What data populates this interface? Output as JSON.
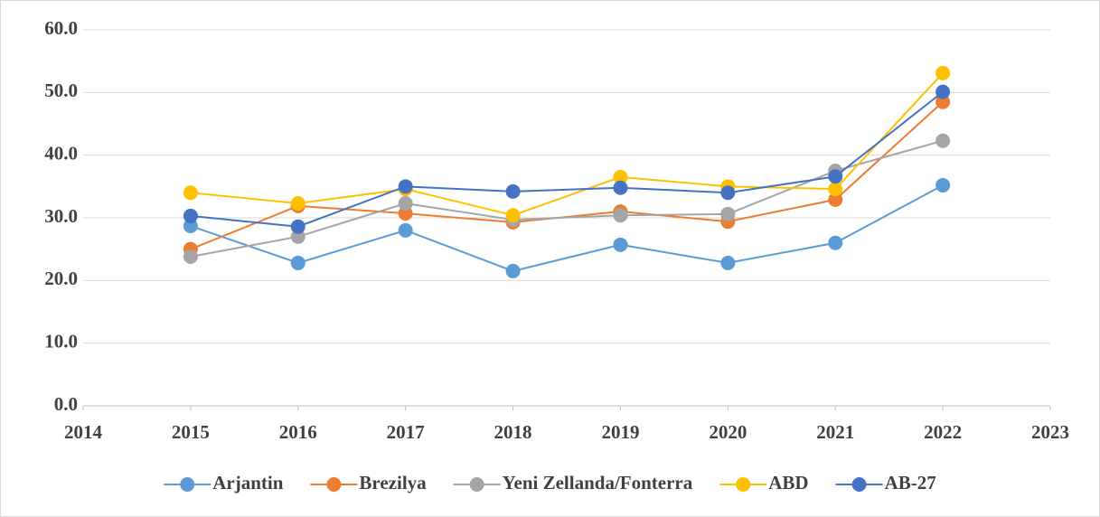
{
  "chart_data": {
    "type": "line",
    "x": [
      2015,
      2016,
      2017,
      2018,
      2019,
      2020,
      2021,
      2022
    ],
    "series": [
      {
        "name": "Arjantin",
        "color": "#5B9BD5",
        "values": [
          28.7,
          22.8,
          28.0,
          21.5,
          25.7,
          22.8,
          26.0,
          35.2
        ]
      },
      {
        "name": "Brezilya",
        "color": "#ED7D31",
        "values": [
          25.0,
          31.9,
          30.7,
          29.3,
          31.0,
          29.4,
          32.9,
          48.5
        ]
      },
      {
        "name": "Yeni Zellanda/Fonterra",
        "color": "#A5A5A5",
        "values": [
          23.8,
          27.0,
          32.3,
          29.7,
          30.4,
          30.6,
          37.5,
          42.3
        ]
      },
      {
        "name": "ABD",
        "color": "#FFC000",
        "values": [
          34.0,
          32.3,
          34.6,
          30.4,
          36.5,
          35.0,
          34.6,
          53.1
        ]
      },
      {
        "name": "AB-27",
        "color": "#4472C4",
        "values": [
          30.3,
          28.6,
          35.0,
          34.2,
          34.8,
          34.0,
          36.6,
          50.1
        ]
      }
    ],
    "xlim": [
      2014,
      2023
    ],
    "xticks": [
      2014,
      2015,
      2016,
      2017,
      2018,
      2019,
      2020,
      2021,
      2022,
      2023
    ],
    "ylim": [
      0,
      60
    ],
    "yticks": [
      {
        "value": 0,
        "label": "0.0"
      },
      {
        "value": 10,
        "label": "10.0"
      },
      {
        "value": 20,
        "label": "20.0"
      },
      {
        "value": 30,
        "label": "30.0"
      },
      {
        "value": 40,
        "label": "40.0"
      },
      {
        "value": 50,
        "label": "50.0"
      },
      {
        "value": 60,
        "label": "60.0"
      }
    ],
    "grid": true,
    "legend": "bottom"
  }
}
